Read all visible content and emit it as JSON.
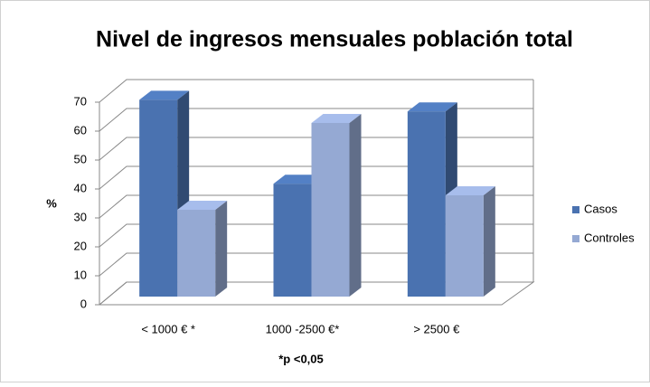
{
  "chart_data": {
    "type": "bar3d",
    "title": "Nivel de ingresos mensuales población total",
    "y_label": "%",
    "footnote": "*p <0,05",
    "categories": [
      "< 1000 € *",
      "1000 -2500 €*",
      "> 2500 €"
    ],
    "series": [
      {
        "name": "Casos",
        "color": "#4a72b0",
        "values": [
          68,
          39,
          64
        ]
      },
      {
        "name": "Controles",
        "color": "#95a9d3",
        "values": [
          30,
          60,
          35
        ]
      }
    ],
    "ylim": [
      0,
      70
    ],
    "yticks": [
      0,
      10,
      20,
      30,
      40,
      50,
      60,
      70
    ],
    "grid": true,
    "legend": "right"
  }
}
